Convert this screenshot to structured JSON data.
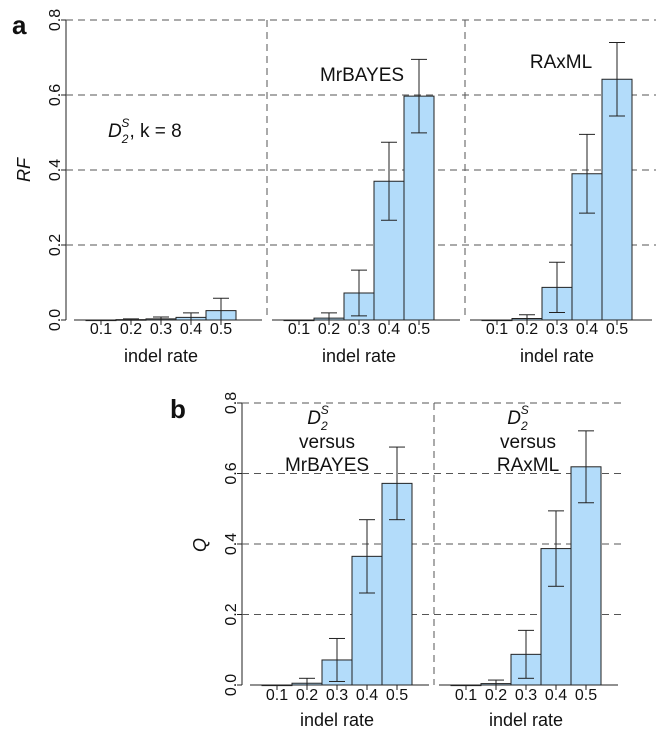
{
  "chart_data": [
    {
      "panel": "a",
      "type": "bar",
      "ylabel": "RF",
      "xlabel": "indel rate",
      "ylim": [
        0,
        0.8
      ],
      "yticks": [
        "0.0",
        "0.2",
        "0.4",
        "0.6",
        "0.8"
      ],
      "grid": true,
      "subplots": [
        {
          "title": "D2S, k = 8",
          "categories": [
            "0.1",
            "0.2",
            "0.3",
            "0.4",
            "0.5"
          ],
          "values": [
            0.0,
            0.001,
            0.003,
            0.007,
            0.025
          ],
          "error": [
            0.0,
            0.002,
            0.005,
            0.012,
            0.033
          ]
        },
        {
          "title": "MrBAYES",
          "categories": [
            "0.1",
            "0.2",
            "0.3",
            "0.4",
            "0.5"
          ],
          "values": [
            0.0,
            0.005,
            0.072,
            0.37,
            0.597
          ],
          "error": [
            0.0,
            0.014,
            0.061,
            0.104,
            0.098
          ]
        },
        {
          "title": "RAxML",
          "categories": [
            "0.1",
            "0.2",
            "0.3",
            "0.4",
            "0.5"
          ],
          "values": [
            0.0,
            0.004,
            0.087,
            0.39,
            0.642
          ],
          "error": [
            0.0,
            0.01,
            0.067,
            0.105,
            0.098
          ]
        }
      ]
    },
    {
      "panel": "b",
      "type": "bar",
      "ylabel": "Q",
      "xlabel": "indel rate",
      "ylim": [
        0,
        0.8
      ],
      "yticks": [
        "0.0",
        "0.2",
        "0.4",
        "0.6",
        "0.8"
      ],
      "grid": true,
      "subplots": [
        {
          "title": "D2S versus MrBAYES",
          "categories": [
            "0.1",
            "0.2",
            "0.3",
            "0.4",
            "0.5"
          ],
          "values": [
            0.0,
            0.005,
            0.071,
            0.365,
            0.572
          ],
          "error": [
            0.0,
            0.014,
            0.061,
            0.104,
            0.103
          ]
        },
        {
          "title": "D2S versus RAxML",
          "categories": [
            "0.1",
            "0.2",
            "0.3",
            "0.4",
            "0.5"
          ],
          "values": [
            0.0,
            0.004,
            0.087,
            0.387,
            0.619
          ],
          "error": [
            0.0,
            0.01,
            0.068,
            0.107,
            0.102
          ]
        }
      ]
    }
  ],
  "labels": {
    "panel_a": "a",
    "panel_b": "b",
    "a_ylabel": "RF",
    "b_ylabel": "Q",
    "xlabel": "indel rate",
    "d2_main": "D",
    "d2_sub": "2",
    "d2_sup": "S",
    "k_text": ", k = 8",
    "versus": "versus",
    "mrbayes": "MrBAYES",
    "raxml": "RAxML"
  },
  "colors": {
    "bar_fill": "#b3dcfa",
    "bar_stroke": "#222222",
    "grid": "#555555",
    "text": "#111111"
  }
}
